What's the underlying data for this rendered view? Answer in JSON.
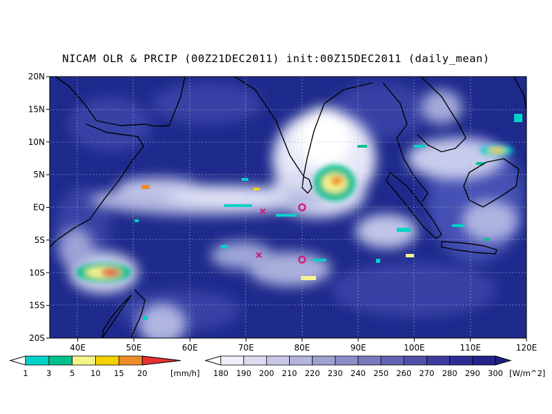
{
  "title": "NICAM OLR & PRCIP (00Z21DEC2011) init:00Z15DEC2011 (daily_mean)",
  "map": {
    "lon_range": [
      35,
      120
    ],
    "lat_range": [
      -20,
      20
    ],
    "lat_ticks": [
      {
        "v": 20,
        "label": "20N"
      },
      {
        "v": 15,
        "label": "15N"
      },
      {
        "v": 10,
        "label": "10N"
      },
      {
        "v": 5,
        "label": "5N"
      },
      {
        "v": 0,
        "label": "EQ"
      },
      {
        "v": -5,
        "label": "5S"
      },
      {
        "v": -10,
        "label": "10S"
      },
      {
        "v": -15,
        "label": "15S"
      },
      {
        "v": -20,
        "label": "20S"
      }
    ],
    "lon_ticks": [
      {
        "v": 40,
        "label": "40E"
      },
      {
        "v": 50,
        "label": "50E"
      },
      {
        "v": 60,
        "label": "60E"
      },
      {
        "v": 70,
        "label": "70E"
      },
      {
        "v": 80,
        "label": "80E"
      },
      {
        "v": 90,
        "label": "90E"
      },
      {
        "v": 100,
        "label": "100E"
      },
      {
        "v": 110,
        "label": "110E"
      },
      {
        "v": 120,
        "label": "120E"
      }
    ],
    "background_color": "#1e2a8c",
    "markers": [
      {
        "type": "circle",
        "lon": 80,
        "lat": 0,
        "color": "#d21e7d"
      },
      {
        "type": "circle",
        "lon": 80,
        "lat": -8,
        "color": "#d21e7d"
      },
      {
        "type": "cross",
        "lon": 73,
        "lat": -0.6,
        "color": "#d21e7d"
      },
      {
        "type": "cross",
        "lon": 72.3,
        "lat": -7.3,
        "color": "#d21e7d"
      }
    ]
  },
  "precip_colorbar": {
    "labels": [
      "1",
      "3",
      "5",
      "10",
      "15",
      "20"
    ],
    "colors": [
      "#00d2c8",
      "#00c08a",
      "#f5f58c",
      "#f5d200",
      "#f08c28",
      "#e63232"
    ],
    "unit": "[mm/h]"
  },
  "olr_colorbar": {
    "labels": [
      "180",
      "190",
      "200",
      "210",
      "220",
      "230",
      "240",
      "250",
      "260",
      "270",
      "280",
      "290",
      "300"
    ],
    "colors": [
      "#f0f0fa",
      "#dcdcf0",
      "#c8c8e6",
      "#b4b4dc",
      "#a0a0d2",
      "#8c8cc8",
      "#7878be",
      "#6464b4",
      "#5050aa",
      "#3c3ca0",
      "#2d2d96",
      "#23238c",
      "#1e1e82"
    ],
    "unit": "[W/m^2]"
  }
}
